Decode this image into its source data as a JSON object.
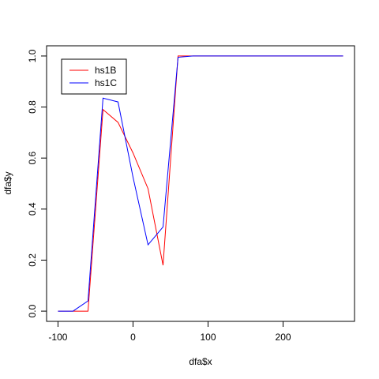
{
  "chart_data": {
    "type": "line",
    "x_label": "dfa$x",
    "y_label": "dfa$y",
    "x": [
      -100,
      -80,
      -60,
      -40,
      -20,
      0,
      20,
      40,
      60,
      80,
      100,
      120,
      140,
      160,
      180,
      200,
      220,
      240,
      260,
      280
    ],
    "series": [
      {
        "name": "hs1B",
        "color": "#ff0000",
        "values": [
          0,
          0,
          0,
          0.79,
          0.74,
          0.62,
          0.48,
          0.18,
          1.0,
          1.0,
          1.0,
          1.0,
          1.0,
          1.0,
          1.0,
          1.0,
          1.0,
          1.0,
          1.0,
          1.0
        ]
      },
      {
        "name": "hs1C",
        "color": "#0000ff",
        "values": [
          0,
          0,
          0.04,
          0.835,
          0.82,
          0.525,
          0.26,
          0.33,
          0.995,
          1.0,
          1.0,
          1.0,
          1.0,
          1.0,
          1.0,
          1.0,
          1.0,
          1.0,
          1.0,
          1.0
        ]
      }
    ],
    "xlim": [
      -115.2,
      295.2
    ],
    "ylim": [
      -0.04,
      1.04
    ],
    "xticks": [
      -100,
      0,
      100,
      200
    ],
    "yticks": [
      {
        "value": 0,
        "label": "0.0"
      },
      0.2,
      0.4,
      0.6,
      0.8,
      {
        "value": 1,
        "label": "1.0"
      }
    ],
    "legend": "top-left"
  }
}
